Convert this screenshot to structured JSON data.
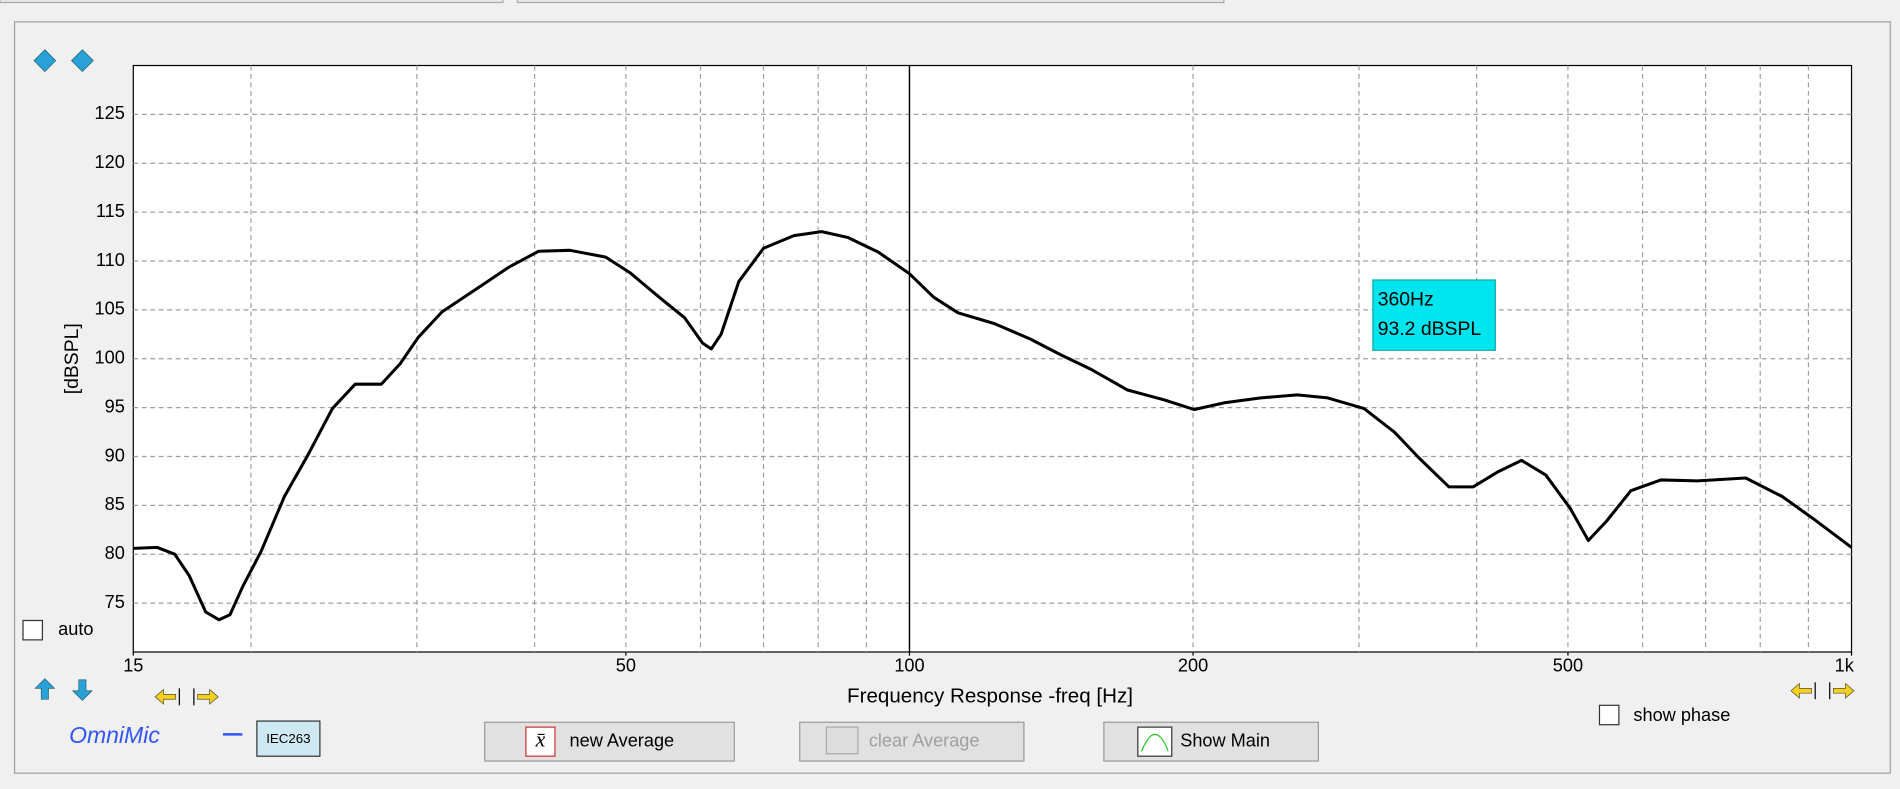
{
  "chart_data": {
    "type": "line",
    "xlabel": "Frequency Response -freq [Hz]",
    "ylabel": "[dBSPL]",
    "x": [
      15,
      15.9,
      16.6,
      17.2,
      17.9,
      18.5,
      19.0,
      19.6,
      20.5,
      21.7,
      23.0,
      24.4,
      25.8,
      27.5,
      28.8,
      30.1,
      31.9,
      34.9,
      37.6,
      40.4,
      43.6,
      47.6,
      50.5,
      54.4,
      57.7,
      60.3,
      61.6,
      63.1,
      65.9,
      70.0,
      75.4,
      80.7,
      86.1,
      92.7,
      100,
      106.1,
      112.6,
      123.1,
      134.5,
      144.8,
      156.0,
      170.4,
      186.3,
      200.6,
      216.0,
      236.1,
      258.0,
      277.9,
      303.8,
      327.1,
      347.1,
      373.8,
      396.7,
      420.7,
      446.4,
      473.7,
      502.8,
      525.6,
      549.6,
      583.1,
      627.6,
      686.2,
      772.2,
      844.1,
      908.9,
      1000
    ],
    "series": [
      {
        "color": "#000000",
        "values": [
          80.6,
          80.7,
          80.0,
          77.8,
          74.1,
          73.3,
          73.8,
          76.7,
          80.3,
          85.9,
          90.2,
          94.9,
          97.4,
          97.4,
          99.5,
          102.2,
          104.8,
          107.3,
          109.4,
          111.0,
          111.1,
          110.4,
          108.8,
          106.2,
          104.2,
          101.6,
          101.0,
          102.5,
          107.9,
          111.3,
          112.6,
          113.0,
          112.4,
          110.9,
          108.7,
          106.3,
          104.7,
          103.6,
          102.0,
          100.4,
          98.9,
          96.8,
          95.8,
          94.8,
          95.5,
          96.0,
          96.3,
          96.0,
          94.9,
          92.5,
          89.9,
          86.9,
          86.9,
          88.4,
          89.6,
          88.1,
          84.7,
          81.4,
          83.4,
          86.5,
          87.6,
          87.5,
          87.8,
          85.9,
          83.7,
          80.7
        ]
      }
    ],
    "xlim": [
      15,
      1000
    ],
    "ylim": [
      70,
      130
    ],
    "log_x": true,
    "grid": true,
    "xticks": [
      15,
      50,
      100,
      200,
      500,
      {
        "value": 1000,
        "label": "1k"
      }
    ],
    "x_grid": [
      20,
      30,
      40,
      50,
      60,
      70,
      80,
      90,
      200,
      300,
      400,
      500,
      600,
      700,
      800,
      900
    ],
    "yticks": [
      75,
      80,
      85,
      90,
      95,
      100,
      105,
      110,
      115,
      120,
      125
    ],
    "cursor_x": 100,
    "readout": [
      "360Hz",
      "93.2 dBSPL"
    ]
  },
  "ui": {
    "auto": "auto",
    "brand": "OmniMic",
    "mic": "IEC263",
    "new_average": "new Average",
    "clear_average": "clear Average",
    "show_main": "Show Main",
    "show_phase": "show phase"
  }
}
